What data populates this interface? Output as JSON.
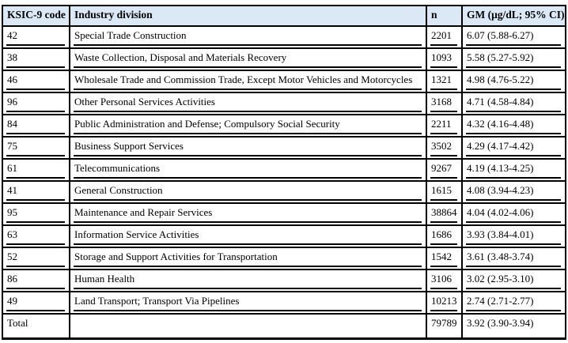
{
  "chart_data": {
    "type": "table",
    "columns": [
      "KSIC-9 code",
      "Industry division",
      "n",
      "GM (μg/dL; 95% CI)"
    ],
    "rows": [
      [
        "42",
        "Special Trade Construction",
        "2201",
        "6.07 (5.88-6.27)"
      ],
      [
        "38",
        "Waste Collection, Disposal and Materials Recovery",
        "1093",
        "5.58 (5.27-5.92)"
      ],
      [
        "46",
        "Wholesale Trade and Commission Trade, Except Motor Vehicles and Motorcycles",
        "1321",
        "4.98 (4.76-5.22)"
      ],
      [
        "96",
        "Other Personal Services Activities",
        "3168",
        "4.71 (4.58-4.84)"
      ],
      [
        "84",
        "Public Administration and Defense; Compulsory Social Security",
        "2211",
        "4.32 (4.16-4.48)"
      ],
      [
        "75",
        "Business Support Services",
        "3502",
        "4.29 (4.17-4.42)"
      ],
      [
        "61",
        "Telecommunications",
        "9267",
        "4.19 (4.13-4.25)"
      ],
      [
        "41",
        "General Construction",
        "1615",
        "4.08 (3.94-4.23)"
      ],
      [
        "95",
        "Maintenance and Repair Services",
        "38864",
        "4.04 (4.02-4.06)"
      ],
      [
        "63",
        "Information Service Activities",
        "1686",
        "3.93 (3.84-4.01)"
      ],
      [
        "52",
        "Storage and Support Activities for Transportation",
        "1542",
        "3.61 (3.48-3.74)"
      ],
      [
        "86",
        "Human Health",
        "3106",
        "3.02 (2.95-3.10)"
      ],
      [
        "49",
        "Land Transport; Transport Via Pipelines",
        "10213",
        "2.74 (2.71-2.77)"
      ]
    ],
    "total_row": [
      "Total",
      "",
      "79789",
      "3.92 (3.90-3.94)"
    ],
    "layout": {
      "header_background": "#dbe8f6",
      "border_color": "#000000",
      "grid": "on"
    }
  }
}
